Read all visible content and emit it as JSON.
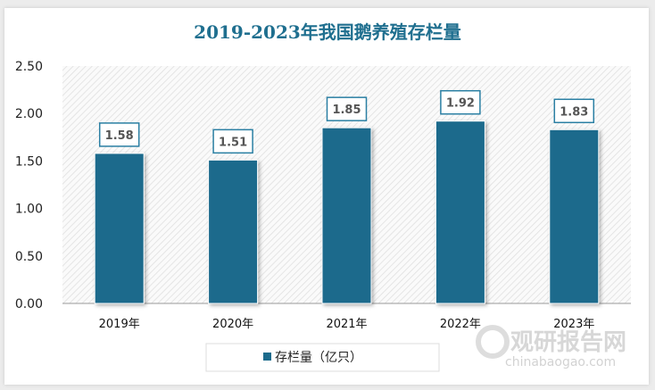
{
  "chart_data": {
    "type": "bar",
    "title": "2019-2023年我国鹅养殖存栏量",
    "categories": [
      "2019年",
      "2020年",
      "2021年",
      "2022年",
      "2023年"
    ],
    "series": [
      {
        "name": "存栏量（亿只）",
        "values": [
          1.58,
          1.51,
          1.85,
          1.92,
          1.83
        ]
      }
    ],
    "yticks": [
      "0.00",
      "0.50",
      "1.00",
      "1.50",
      "2.00",
      "2.50"
    ],
    "ylim": [
      0,
      2.5
    ],
    "grid": false,
    "legend": "bottom",
    "bar_color": "#1c6b8c"
  },
  "watermark": {
    "brand": "观研报告网",
    "site": "chinabaogao.com"
  }
}
